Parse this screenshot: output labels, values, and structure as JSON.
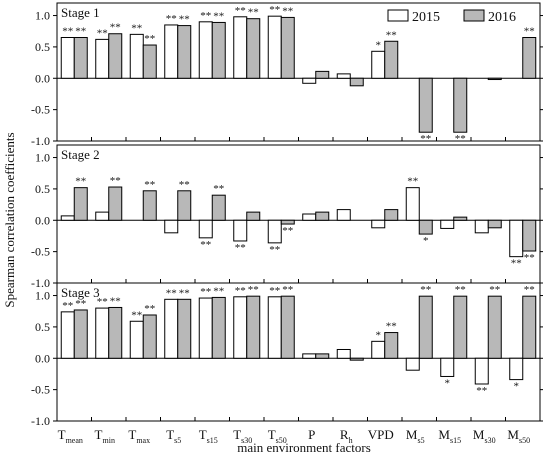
{
  "chart_data": {
    "type": "bar",
    "ylabel": "Spearman correlation coefficients",
    "xlabel": "main environment factors",
    "categories": [
      {
        "main": "T",
        "sub": "mean"
      },
      {
        "main": "T",
        "sub": "min"
      },
      {
        "main": "T",
        "sub": "max"
      },
      {
        "main": "T",
        "sub": "s5"
      },
      {
        "main": "T",
        "sub": "s15"
      },
      {
        "main": "T",
        "sub": "s30"
      },
      {
        "main": "T",
        "sub": "s50"
      },
      {
        "main": "P",
        "sub": ""
      },
      {
        "main": "R",
        "sub": "h"
      },
      {
        "main": "VPD",
        "sub": ""
      },
      {
        "main": "M",
        "sub": "s5"
      },
      {
        "main": "M",
        "sub": "s15"
      },
      {
        "main": "M",
        "sub": "s30"
      },
      {
        "main": "M",
        "sub": "s50"
      }
    ],
    "series": [
      {
        "name": "2015",
        "color": "#ffffff"
      },
      {
        "name": "2016",
        "color": "#b8b8b8"
      }
    ],
    "yticks": [
      1.0,
      0.5,
      0.0,
      -0.5,
      -1.0
    ],
    "ytick_labels": [
      "1.0",
      "0.5",
      "0.0",
      "-0.5",
      "-1.0"
    ],
    "ylim": [
      -1.0,
      1.2
    ],
    "legend_position": "top-right",
    "panels": [
      {
        "label": "Stage 1",
        "values_2015": [
          0.65,
          0.62,
          0.7,
          0.85,
          0.9,
          0.98,
          0.99,
          -0.08,
          0.07,
          0.43,
          0.0,
          0.0,
          0.0,
          0.0
        ],
        "values_2016": [
          0.65,
          0.71,
          0.53,
          0.84,
          0.89,
          0.95,
          0.97,
          0.11,
          -0.12,
          0.59,
          -0.86,
          -0.86,
          -0.02,
          0.65
        ],
        "sig_2015": [
          "**",
          "**",
          "**",
          "**",
          "**",
          "**",
          "**",
          "",
          "",
          "*",
          "",
          "",
          "",
          ""
        ],
        "sig_2016": [
          "**",
          "**",
          "**",
          "**",
          "**",
          "**",
          "**",
          "",
          "",
          "**",
          "**",
          "**",
          "",
          "**"
        ]
      },
      {
        "label": "Stage 2",
        "values_2015": [
          0.07,
          0.13,
          0.0,
          -0.2,
          -0.28,
          -0.33,
          -0.36,
          0.1,
          0.17,
          -0.12,
          0.52,
          -0.13,
          -0.2,
          -0.58
        ],
        "values_2016": [
          0.52,
          0.53,
          0.47,
          0.47,
          0.4,
          0.13,
          -0.06,
          0.13,
          0.0,
          0.17,
          -0.22,
          0.05,
          -0.12,
          -0.49
        ],
        "sig_2015": [
          "",
          "",
          "",
          "",
          "**",
          "**",
          "**",
          "",
          "",
          "",
          "**",
          "",
          "",
          "**"
        ],
        "sig_2016": [
          "**",
          "**",
          "**",
          "**",
          "**",
          "",
          "**",
          "",
          "",
          "",
          "*",
          "",
          "",
          "**"
        ]
      },
      {
        "label": "Stage 3",
        "values_2015": [
          0.74,
          0.8,
          0.59,
          0.94,
          0.96,
          0.98,
          0.98,
          0.07,
          0.14,
          0.27,
          -0.19,
          -0.29,
          -0.41,
          -0.34
        ],
        "values_2016": [
          0.77,
          0.81,
          0.69,
          0.94,
          0.97,
          0.99,
          0.99,
          0.07,
          -0.03,
          0.41,
          0.99,
          0.99,
          0.99,
          0.99
        ],
        "sig_2015": [
          "**",
          "**",
          "**",
          "**",
          "**",
          "**",
          "**",
          "",
          "",
          "*",
          "",
          "*",
          "**",
          "*"
        ],
        "sig_2016": [
          "**",
          "**",
          "**",
          "**",
          "**",
          "**",
          "**",
          "",
          "",
          "**",
          "**",
          "**",
          "**",
          "**"
        ]
      }
    ]
  }
}
